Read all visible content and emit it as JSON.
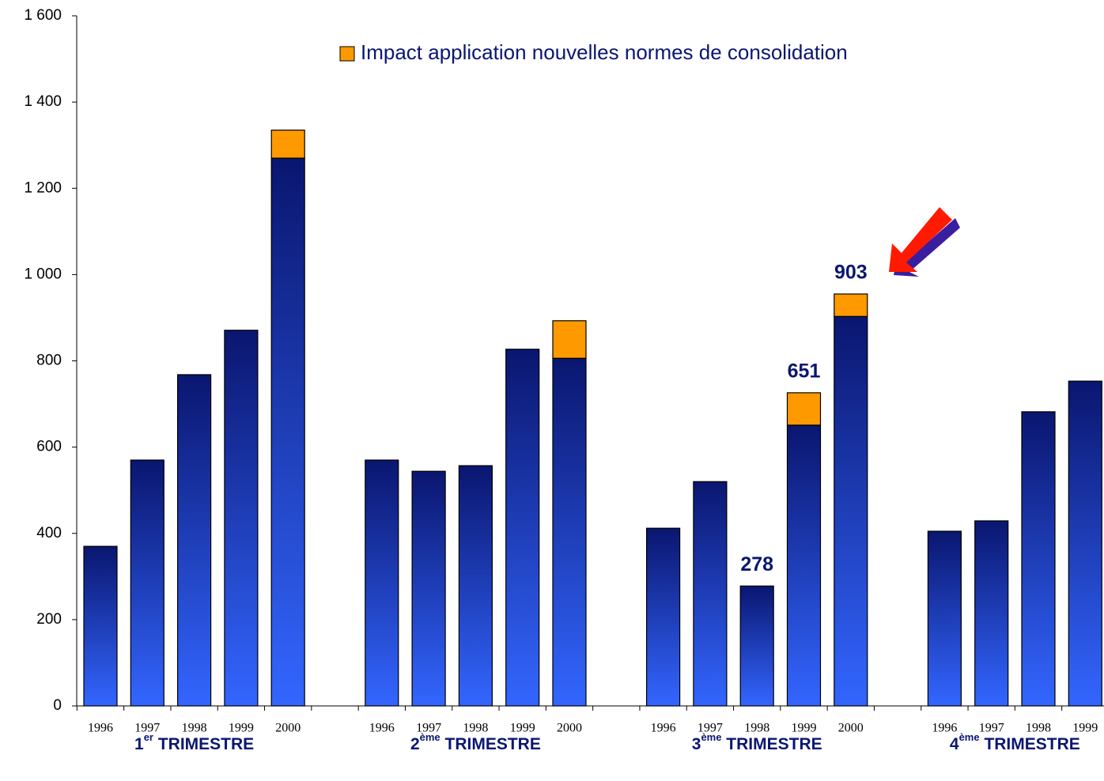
{
  "chart_data": {
    "type": "stacked-bar",
    "legend": "top",
    "groups": [
      {
        "number": "1",
        "suffix": "er",
        "label": " TRIMESTRE"
      },
      {
        "number": "2",
        "suffix": "ème",
        "label": " TRIMESTRE"
      },
      {
        "number": "3",
        "suffix": "ème",
        "label": " TRIMESTRE"
      },
      {
        "number": "4",
        "suffix": "ème",
        "label": " TRIMESTRE"
      }
    ],
    "categories": [
      [
        "1996",
        "1997",
        "1998",
        "1999",
        "2000"
      ],
      [
        "1996",
        "1997",
        "1998",
        "1999",
        "2000"
      ],
      [
        "1996",
        "1997",
        "1998",
        "1999",
        "2000"
      ],
      [
        "1996",
        "1997",
        "1998",
        "1999"
      ]
    ],
    "series": [
      {
        "color": "#3366ff",
        "top_color": "#0a1670",
        "values": [
          [
            370,
            570,
            768,
            871,
            1270
          ],
          [
            570,
            544,
            557,
            827,
            806
          ],
          [
            412,
            520,
            278,
            651,
            903
          ],
          [
            405,
            429,
            682,
            753
          ]
        ],
        "value_labels": [
          [
            null,
            null,
            null,
            null,
            null
          ],
          [
            null,
            null,
            null,
            null,
            null
          ],
          [
            null,
            null,
            "278",
            "651",
            "903"
          ],
          [
            null,
            null,
            null,
            null
          ]
        ]
      },
      {
        "name": "Impact application nouvelles normes de consolidation",
        "color": "#ff9900",
        "values": [
          [
            null,
            null,
            null,
            null,
            65
          ],
          [
            null,
            null,
            null,
            null,
            87
          ],
          [
            null,
            null,
            null,
            75,
            52
          ],
          [
            null,
            null,
            null,
            null
          ]
        ]
      }
    ],
    "ylim": [
      0,
      1600
    ],
    "yticks": [
      0,
      200,
      400,
      600,
      800,
      {
        "value": 1000,
        "label": "1 000"
      },
      {
        "value": 1200,
        "label": "1 200"
      },
      {
        "value": 1400,
        "label": "1 400"
      },
      {
        "value": 1600,
        "label": "1 600"
      }
    ]
  }
}
